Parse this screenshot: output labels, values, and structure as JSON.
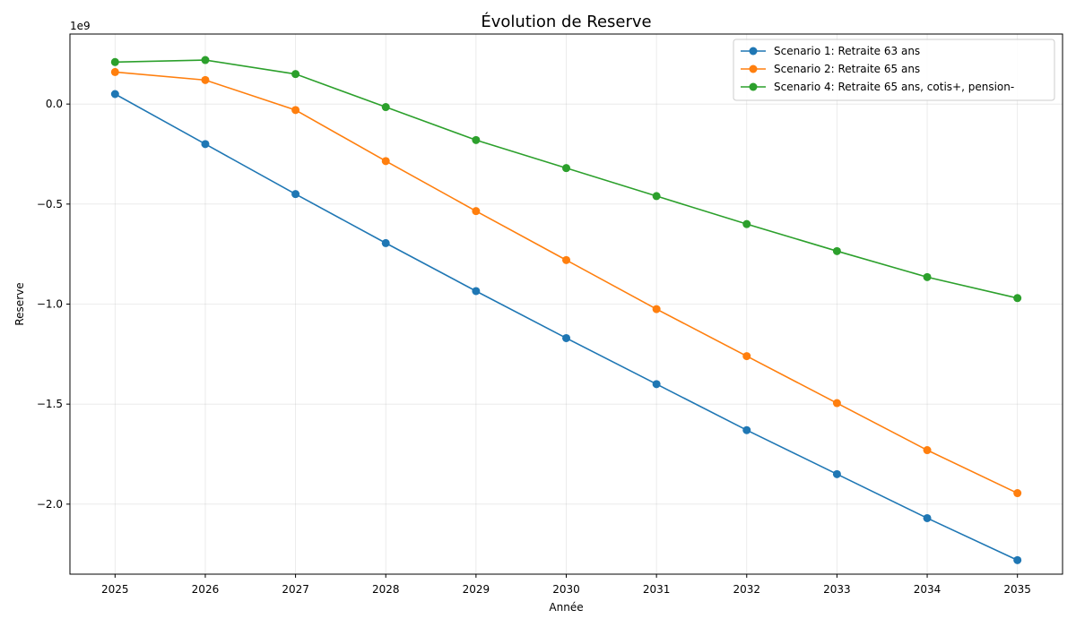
{
  "chart_data": {
    "type": "line",
    "title": "Évolution de Reserve",
    "xlabel": "Année",
    "ylabel": "Reserve",
    "y_offset_label": "1e9",
    "x": [
      2025,
      2026,
      2027,
      2028,
      2029,
      2030,
      2031,
      2032,
      2033,
      2034,
      2035
    ],
    "xlim": [
      2024.5,
      2035.5
    ],
    "ylim": [
      -2.35,
      0.35
    ],
    "y_scale_note": "values in units of 1e9",
    "y_ticks": [
      0.0,
      -0.5,
      -1.0,
      -1.5,
      -2.0
    ],
    "y_tick_labels": [
      "0.0",
      "−0.5",
      "−1.0",
      "−1.5",
      "−2.0"
    ],
    "grid": true,
    "legend_position": "top-right",
    "series": [
      {
        "name": "Scenario 1: Retraite 63 ans",
        "color": "#1f77b4",
        "values": [
          0.05,
          -0.2,
          -0.45,
          -0.695,
          -0.935,
          -1.17,
          -1.4,
          -1.63,
          -1.85,
          -2.07,
          -2.28
        ]
      },
      {
        "name": "Scenario 2: Retraite 65 ans",
        "color": "#ff7f0e",
        "values": [
          0.16,
          0.12,
          -0.03,
          -0.285,
          -0.535,
          -0.78,
          -1.025,
          -1.26,
          -1.495,
          -1.73,
          -1.945
        ]
      },
      {
        "name": "Scenario 4: Retraite 65 ans, cotis+, pension-",
        "color": "#2ca02c",
        "values": [
          0.21,
          0.22,
          0.15,
          -0.015,
          -0.18,
          -0.32,
          -0.46,
          -0.6,
          -0.735,
          -0.865,
          -0.97
        ]
      }
    ]
  }
}
